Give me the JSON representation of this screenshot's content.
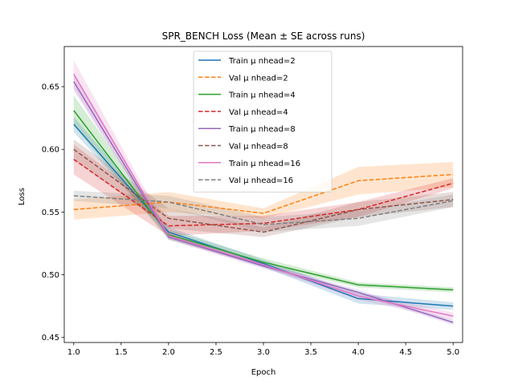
{
  "chart_data": {
    "type": "line",
    "title": "SPR_BENCH Loss (Mean ± SE across runs)",
    "xlabel": "Epoch",
    "ylabel": "Loss",
    "xlim": [
      0.9,
      5.1
    ],
    "ylim": [
      0.446,
      0.682
    ],
    "x_ticks": [
      "1.0",
      "1.5",
      "2.0",
      "2.5",
      "3.0",
      "3.5",
      "4.0",
      "4.5",
      "5.0"
    ],
    "y_ticks": [
      "0.45",
      "0.50",
      "0.55",
      "0.60",
      "0.65"
    ],
    "legend_position": "top-center",
    "grid": false,
    "x": [
      1,
      2,
      3,
      4,
      5
    ],
    "series": [
      {
        "name": "Train μ nhead=2",
        "color": "#1f77b4",
        "dash": "solid",
        "values": [
          0.62,
          0.534,
          0.509,
          0.481,
          0.475
        ],
        "se": [
          0.006,
          0.004,
          0.003,
          0.004,
          0.003
        ]
      },
      {
        "name": "Val μ nhead=2",
        "color": "#ff7f0e",
        "dash": "dashed",
        "values": [
          0.552,
          0.558,
          0.549,
          0.575,
          0.58
        ],
        "se": [
          0.008,
          0.008,
          0.004,
          0.011,
          0.01
        ]
      },
      {
        "name": "Train μ nhead=4",
        "color": "#2ca02c",
        "dash": "solid",
        "values": [
          0.631,
          0.532,
          0.51,
          0.492,
          0.488
        ],
        "se": [
          0.012,
          0.004,
          0.003,
          0.002,
          0.002
        ]
      },
      {
        "name": "Val μ nhead=4",
        "color": "#d62728",
        "dash": "dashed",
        "values": [
          0.592,
          0.539,
          0.541,
          0.552,
          0.573
        ],
        "se": [
          0.012,
          0.008,
          0.006,
          0.006,
          0.004
        ]
      },
      {
        "name": "Train μ nhead=8",
        "color": "#9467bd",
        "dash": "solid",
        "values": [
          0.654,
          0.53,
          0.507,
          0.486,
          0.462
        ],
        "se": [
          0.007,
          0.002,
          0.002,
          0.002,
          0.002
        ]
      },
      {
        "name": "Val μ nhead=8",
        "color": "#8c564b",
        "dash": "dashed",
        "values": [
          0.6,
          0.545,
          0.534,
          0.552,
          0.56
        ],
        "se": [
          0.008,
          0.008,
          0.004,
          0.006,
          0.006
        ]
      },
      {
        "name": "Train μ nhead=16",
        "color": "#e377c2",
        "dash": "solid",
        "values": [
          0.66,
          0.531,
          0.508,
          0.483,
          0.467
        ],
        "se": [
          0.011,
          0.003,
          0.002,
          0.003,
          0.003
        ]
      },
      {
        "name": "Val μ nhead=16",
        "color": "#7f7f7f",
        "dash": "dashed",
        "values": [
          0.563,
          0.558,
          0.54,
          0.545,
          0.559
        ],
        "se": [
          0.004,
          0.005,
          0.006,
          0.006,
          0.005
        ]
      }
    ]
  }
}
